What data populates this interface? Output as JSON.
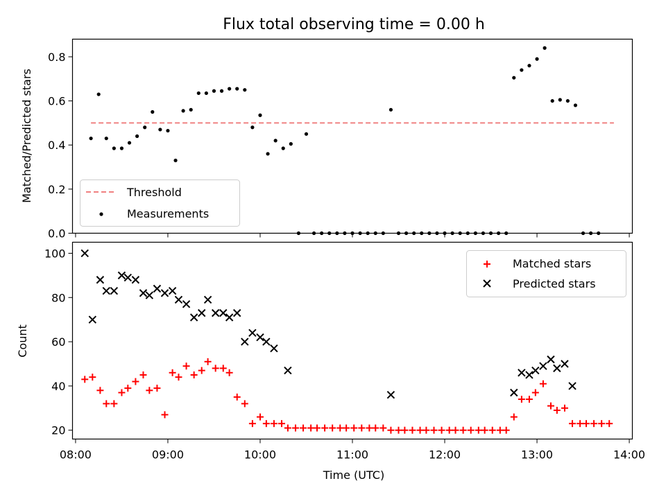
{
  "chart_data": [
    {
      "type": "scatter",
      "title": "Flux total observing time = 0.00 h",
      "ylabel": "Matched/Predicted stars",
      "xlabel": "",
      "ylim": [
        0,
        0.88
      ],
      "yticks": [
        0.0,
        0.2,
        0.4,
        0.6,
        0.8
      ],
      "ytick_labels": [
        "0.0",
        "0.2",
        "0.4",
        "0.6",
        "0.8"
      ],
      "grid": false,
      "legend_position": "lower-left",
      "threshold": {
        "name": "Threshold",
        "value": 0.5,
        "x_start": "08:10",
        "x_end": "13:50",
        "color": "#f08080",
        "style": "dashed"
      },
      "series": [
        {
          "name": "Measurements",
          "color": "#000000",
          "points": [
            [
              "08:10",
              0.43
            ],
            [
              "08:15",
              0.63
            ],
            [
              "08:20",
              0.43
            ],
            [
              "08:25",
              0.385
            ],
            [
              "08:30",
              0.385
            ],
            [
              "08:35",
              0.41
            ],
            [
              "08:40",
              0.44
            ],
            [
              "08:45",
              0.48
            ],
            [
              "08:50",
              0.55
            ],
            [
              "08:55",
              0.47
            ],
            [
              "09:00",
              0.465
            ],
            [
              "09:05",
              0.33
            ],
            [
              "09:10",
              0.555
            ],
            [
              "09:15",
              0.56
            ],
            [
              "09:20",
              0.635
            ],
            [
              "09:25",
              0.635
            ],
            [
              "09:30",
              0.645
            ],
            [
              "09:35",
              0.645
            ],
            [
              "09:40",
              0.655
            ],
            [
              "09:45",
              0.655
            ],
            [
              "09:50",
              0.65
            ],
            [
              "09:55",
              0.48
            ],
            [
              "10:00",
              0.535
            ],
            [
              "10:05",
              0.36
            ],
            [
              "10:10",
              0.42
            ],
            [
              "10:15",
              0.385
            ],
            [
              "10:20",
              0.405
            ],
            [
              "10:25",
              0.0
            ],
            [
              "10:30",
              0.45
            ],
            [
              "10:35",
              0.0
            ],
            [
              "10:40",
              0.0
            ],
            [
              "10:45",
              0.0
            ],
            [
              "10:50",
              0.0
            ],
            [
              "10:55",
              0.0
            ],
            [
              "11:00",
              0.0
            ],
            [
              "11:05",
              0.0
            ],
            [
              "11:10",
              0.0
            ],
            [
              "11:15",
              0.0
            ],
            [
              "11:20",
              0.0
            ],
            [
              "11:25",
              0.56
            ],
            [
              "11:30",
              0.0
            ],
            [
              "11:35",
              0.0
            ],
            [
              "11:40",
              0.0
            ],
            [
              "11:45",
              0.0
            ],
            [
              "11:50",
              0.0
            ],
            [
              "11:55",
              0.0
            ],
            [
              "12:00",
              0.0
            ],
            [
              "12:05",
              0.0
            ],
            [
              "12:10",
              0.0
            ],
            [
              "12:15",
              0.0
            ],
            [
              "12:20",
              0.0
            ],
            [
              "12:25",
              0.0
            ],
            [
              "12:30",
              0.0
            ],
            [
              "12:35",
              0.0
            ],
            [
              "12:40",
              0.0
            ],
            [
              "12:45",
              0.705
            ],
            [
              "12:50",
              0.74
            ],
            [
              "12:55",
              0.76
            ],
            [
              "13:00",
              0.79
            ],
            [
              "13:05",
              0.84
            ],
            [
              "13:10",
              0.6
            ],
            [
              "13:15",
              0.605
            ],
            [
              "13:20",
              0.6
            ],
            [
              "13:25",
              0.58
            ],
            [
              "13:30",
              0.0
            ],
            [
              "13:35",
              0.0
            ],
            [
              "13:40",
              0.0
            ]
          ]
        }
      ]
    },
    {
      "type": "scatter",
      "title": "",
      "xlabel": "Time (UTC)",
      "ylabel": "Count",
      "xlim": [
        "07:58",
        "14:02"
      ],
      "ylim": [
        16,
        105
      ],
      "xticks": [
        "08:00",
        "09:00",
        "10:00",
        "11:00",
        "12:00",
        "13:00",
        "14:00"
      ],
      "yticks": [
        20,
        40,
        60,
        80,
        100
      ],
      "grid": false,
      "legend_position": "top-right",
      "series": [
        {
          "name": "Matched stars",
          "marker": "+",
          "color": "#ff0000",
          "points": [
            [
              "08:06",
              43
            ],
            [
              "08:11",
              44
            ],
            [
              "08:16",
              38
            ],
            [
              "08:20",
              32
            ],
            [
              "08:25",
              32
            ],
            [
              "08:30",
              37
            ],
            [
              "08:34",
              39
            ],
            [
              "08:39",
              42
            ],
            [
              "08:44",
              45
            ],
            [
              "08:48",
              38
            ],
            [
              "08:53",
              39
            ],
            [
              "08:58",
              27
            ],
            [
              "09:03",
              46
            ],
            [
              "09:07",
              44
            ],
            [
              "09:12",
              49
            ],
            [
              "09:17",
              45
            ],
            [
              "09:22",
              47
            ],
            [
              "09:26",
              51
            ],
            [
              "09:31",
              48
            ],
            [
              "09:36",
              48
            ],
            [
              "09:40",
              46
            ],
            [
              "09:45",
              35
            ],
            [
              "09:50",
              32
            ],
            [
              "09:55",
              23
            ],
            [
              "10:00",
              26
            ],
            [
              "10:04",
              23
            ],
            [
              "10:09",
              23
            ],
            [
              "10:14",
              23
            ],
            [
              "10:18",
              21
            ],
            [
              "10:23",
              21
            ],
            [
              "10:28",
              21
            ],
            [
              "10:33",
              21
            ],
            [
              "10:37",
              21
            ],
            [
              "10:42",
              21
            ],
            [
              "10:47",
              21
            ],
            [
              "10:52",
              21
            ],
            [
              "10:56",
              21
            ],
            [
              "11:01",
              21
            ],
            [
              "11:06",
              21
            ],
            [
              "11:11",
              21
            ],
            [
              "11:15",
              21
            ],
            [
              "11:20",
              21
            ],
            [
              "11:25",
              20
            ],
            [
              "11:30",
              20
            ],
            [
              "11:34",
              20
            ],
            [
              "11:39",
              20
            ],
            [
              "11:44",
              20
            ],
            [
              "11:48",
              20
            ],
            [
              "11:53",
              20
            ],
            [
              "11:58",
              20
            ],
            [
              "12:03",
              20
            ],
            [
              "12:07",
              20
            ],
            [
              "12:12",
              20
            ],
            [
              "12:17",
              20
            ],
            [
              "12:22",
              20
            ],
            [
              "12:26",
              20
            ],
            [
              "12:31",
              20
            ],
            [
              "12:36",
              20
            ],
            [
              "12:40",
              20
            ],
            [
              "12:45",
              26
            ],
            [
              "12:50",
              34
            ],
            [
              "12:55",
              34
            ],
            [
              "12:59",
              37
            ],
            [
              "13:04",
              41
            ],
            [
              "13:09",
              31
            ],
            [
              "13:13",
              29
            ],
            [
              "13:18",
              30
            ],
            [
              "13:23",
              23
            ],
            [
              "13:28",
              23
            ],
            [
              "13:32",
              23
            ],
            [
              "13:37",
              23
            ],
            [
              "13:42",
              23
            ],
            [
              "13:47",
              23
            ]
          ]
        },
        {
          "name": "Predicted stars",
          "marker": "x",
          "color": "#000000",
          "points": [
            [
              "08:06",
              100
            ],
            [
              "08:11",
              70
            ],
            [
              "08:16",
              88
            ],
            [
              "08:20",
              83
            ],
            [
              "08:25",
              83
            ],
            [
              "08:30",
              90
            ],
            [
              "08:34",
              89
            ],
            [
              "08:39",
              88
            ],
            [
              "08:44",
              82
            ],
            [
              "08:48",
              81
            ],
            [
              "08:53",
              84
            ],
            [
              "08:58",
              82
            ],
            [
              "09:03",
              83
            ],
            [
              "09:07",
              79
            ],
            [
              "09:12",
              77
            ],
            [
              "09:17",
              71
            ],
            [
              "09:22",
              73
            ],
            [
              "09:26",
              79
            ],
            [
              "09:31",
              73
            ],
            [
              "09:36",
              73
            ],
            [
              "09:40",
              71
            ],
            [
              "09:45",
              73
            ],
            [
              "09:50",
              60
            ],
            [
              "09:55",
              64
            ],
            [
              "10:00",
              62
            ],
            [
              "10:04",
              60
            ],
            [
              "10:09",
              57
            ],
            [
              "10:18",
              47
            ],
            [
              "11:25",
              36
            ],
            [
              "12:45",
              37
            ],
            [
              "12:50",
              46
            ],
            [
              "12:55",
              45
            ],
            [
              "12:59",
              47
            ],
            [
              "13:04",
              49
            ],
            [
              "13:09",
              52
            ],
            [
              "13:13",
              48
            ],
            [
              "13:18",
              50
            ],
            [
              "13:23",
              40
            ]
          ]
        }
      ]
    }
  ]
}
